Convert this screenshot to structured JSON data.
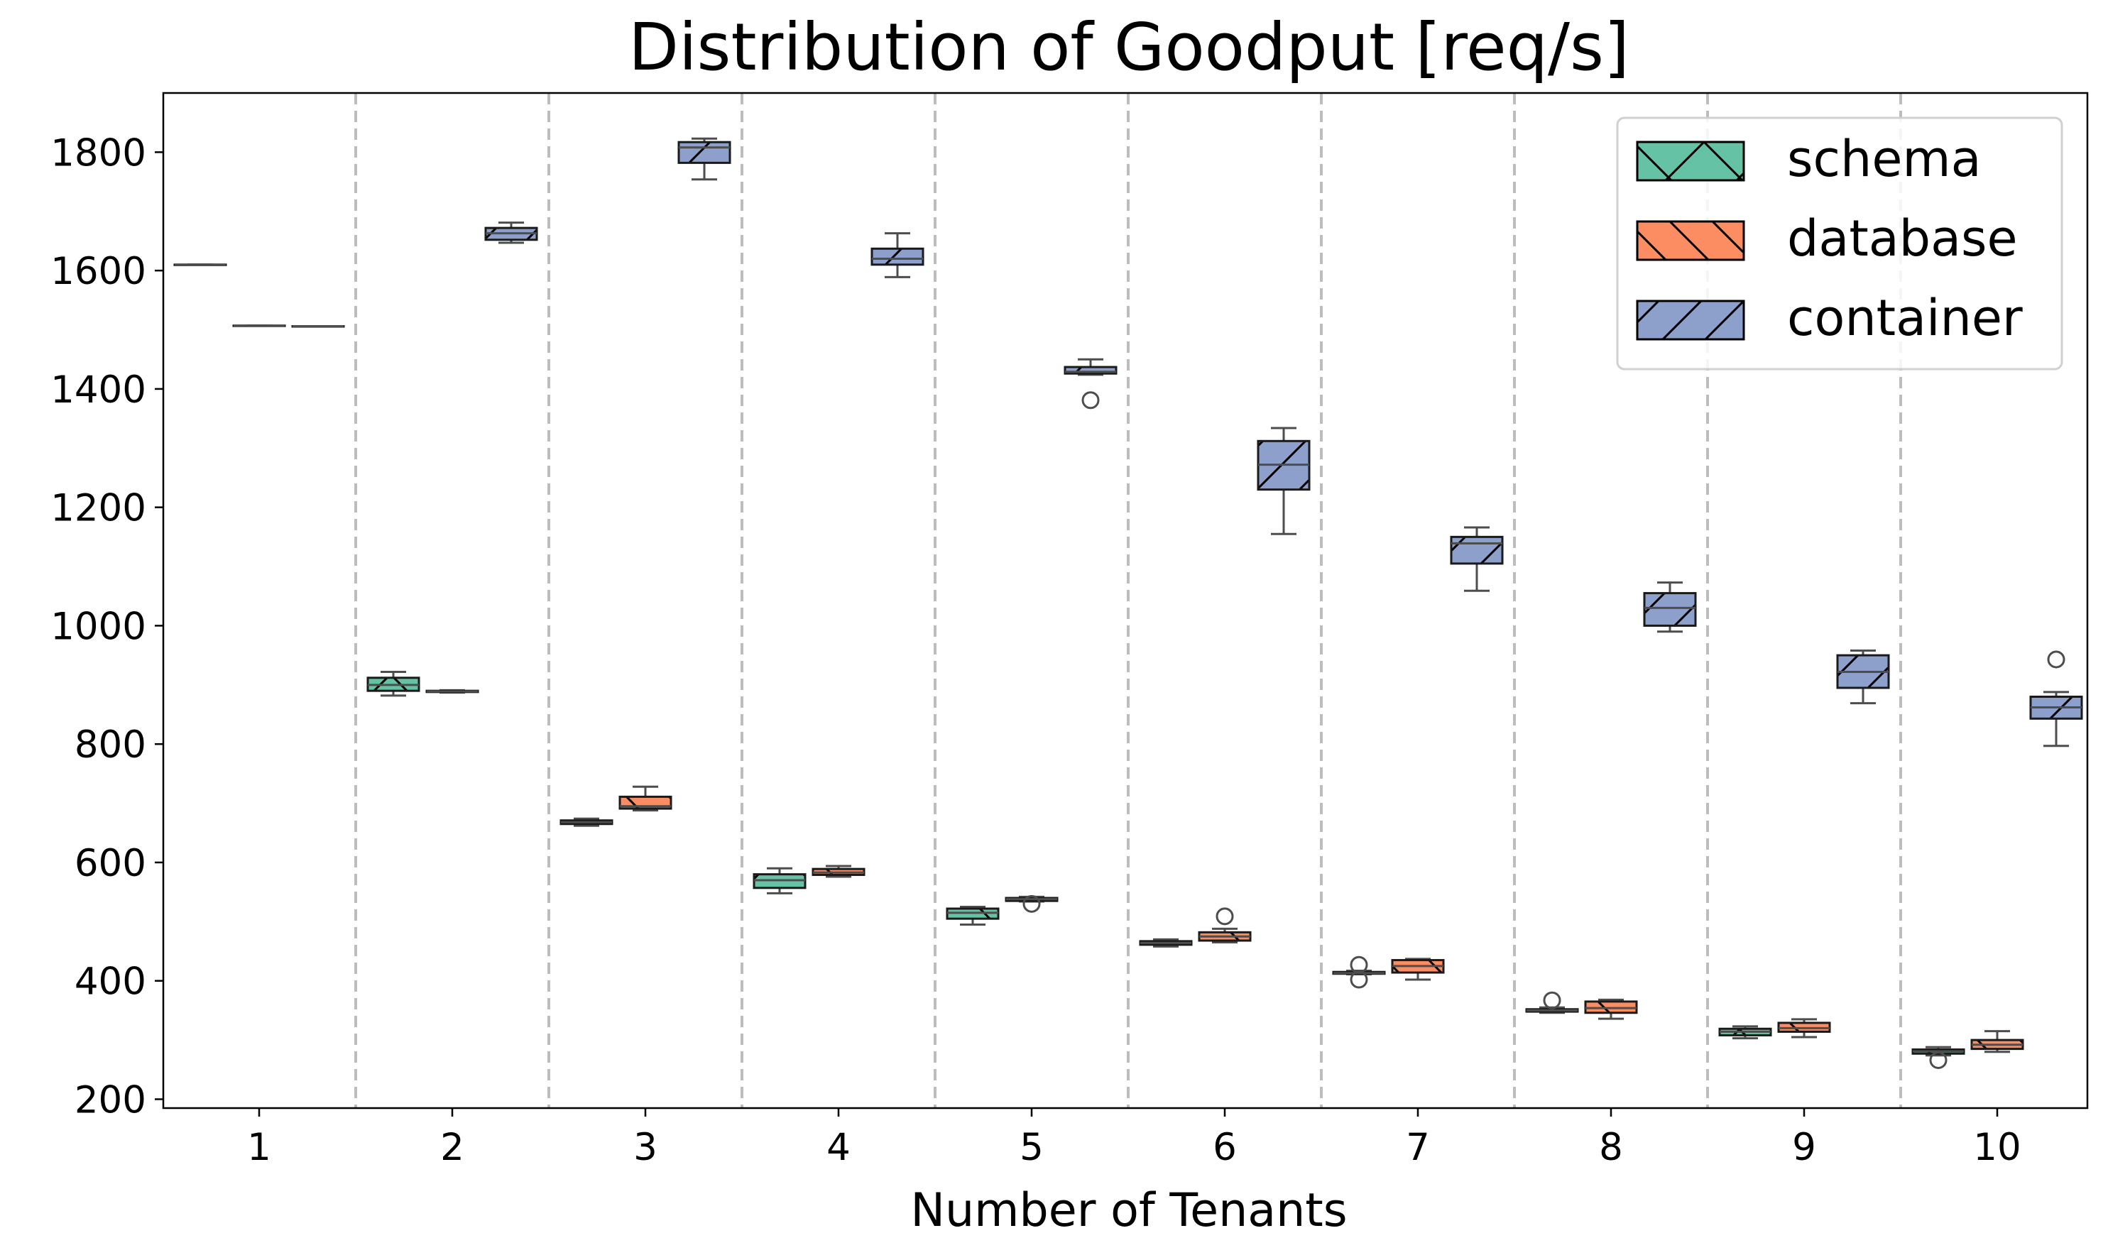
{
  "chart_data": {
    "type": "box",
    "title": "Distribution of Goodput [req/s]",
    "xlabel": "Number of Tenants",
    "ylabel": "",
    "categories": [
      "1",
      "2",
      "3",
      "4",
      "5",
      "6",
      "7",
      "8",
      "9",
      "10"
    ],
    "y_ticks": [
      200,
      400,
      600,
      800,
      1000,
      1200,
      1400,
      1600,
      1800
    ],
    "ylim": [
      185,
      1900
    ],
    "grid": false,
    "category_separators": "dashed vertical lines between categories",
    "legend": {
      "position": "top-right"
    },
    "series": [
      {
        "name": "schema",
        "color": "#66c2a5",
        "hatch": "x",
        "boxes": [
          {
            "min": 1610,
            "q1": 1610,
            "median": 1610,
            "q3": 1610,
            "max": 1610,
            "outliers": []
          },
          {
            "min": 882,
            "q1": 890,
            "median": 900,
            "q3": 912,
            "max": 922,
            "outliers": []
          },
          {
            "min": 662,
            "q1": 665,
            "median": 668,
            "q3": 671,
            "max": 674,
            "outliers": []
          },
          {
            "min": 548,
            "q1": 557,
            "median": 570,
            "q3": 580,
            "max": 590,
            "outliers": []
          },
          {
            "min": 495,
            "q1": 505,
            "median": 515,
            "q3": 522,
            "max": 525,
            "outliers": []
          },
          {
            "min": 458,
            "q1": 461,
            "median": 464,
            "q3": 467,
            "max": 470,
            "outliers": []
          },
          {
            "min": 411,
            "q1": 412,
            "median": 413,
            "q3": 415,
            "max": 417,
            "outliers": [
              402,
              427
            ]
          },
          {
            "min": 346,
            "q1": 348,
            "median": 350,
            "q3": 352,
            "max": 355,
            "outliers": [
              367
            ]
          },
          {
            "min": 303,
            "q1": 308,
            "median": 314,
            "q3": 319,
            "max": 323,
            "outliers": []
          },
          {
            "min": 274,
            "q1": 277,
            "median": 281,
            "q3": 284,
            "max": 288,
            "outliers": [
              266
            ]
          }
        ]
      },
      {
        "name": "database",
        "color": "#fc8d62",
        "hatch": "\\",
        "boxes": [
          {
            "min": 1507,
            "q1": 1507,
            "median": 1507,
            "q3": 1507,
            "max": 1507,
            "outliers": []
          },
          {
            "min": 887,
            "q1": 888,
            "median": 889,
            "q3": 890,
            "max": 891,
            "outliers": []
          },
          {
            "min": 688,
            "q1": 691,
            "median": 695,
            "q3": 711,
            "max": 728,
            "outliers": []
          },
          {
            "min": 576,
            "q1": 579,
            "median": 583,
            "q3": 589,
            "max": 594,
            "outliers": []
          },
          {
            "min": 534,
            "q1": 535,
            "median": 538,
            "q3": 540,
            "max": 542,
            "outliers": [
              530
            ]
          },
          {
            "min": 465,
            "q1": 468,
            "median": 475,
            "q3": 482,
            "max": 488,
            "outliers": [
              509
            ]
          },
          {
            "min": 402,
            "q1": 414,
            "median": 425,
            "q3": 435,
            "max": 437,
            "outliers": []
          },
          {
            "min": 336,
            "q1": 346,
            "median": 354,
            "q3": 365,
            "max": 368,
            "outliers": []
          },
          {
            "min": 305,
            "q1": 314,
            "median": 320,
            "q3": 329,
            "max": 335,
            "outliers": []
          },
          {
            "min": 280,
            "q1": 285,
            "median": 292,
            "q3": 300,
            "max": 315,
            "outliers": []
          }
        ]
      },
      {
        "name": "container",
        "color": "#8da0cb",
        "hatch": "/",
        "boxes": [
          {
            "min": 1506,
            "q1": 1506,
            "median": 1506,
            "q3": 1506,
            "max": 1506,
            "outliers": []
          },
          {
            "min": 1647,
            "q1": 1652,
            "median": 1663,
            "q3": 1672,
            "max": 1681,
            "outliers": []
          },
          {
            "min": 1754,
            "q1": 1782,
            "median": 1808,
            "q3": 1817,
            "max": 1823,
            "outliers": []
          },
          {
            "min": 1589,
            "q1": 1610,
            "median": 1620,
            "q3": 1637,
            "max": 1663,
            "outliers": []
          },
          {
            "min": 1424,
            "q1": 1426,
            "median": 1429,
            "q3": 1437,
            "max": 1450,
            "outliers": [
              1381
            ]
          },
          {
            "min": 1155,
            "q1": 1230,
            "median": 1272,
            "q3": 1312,
            "max": 1334,
            "outliers": []
          },
          {
            "min": 1059,
            "q1": 1105,
            "median": 1139,
            "q3": 1150,
            "max": 1166,
            "outliers": []
          },
          {
            "min": 990,
            "q1": 1000,
            "median": 1030,
            "q3": 1055,
            "max": 1073,
            "outliers": []
          },
          {
            "min": 869,
            "q1": 895,
            "median": 922,
            "q3": 950,
            "max": 958,
            "outliers": []
          },
          {
            "min": 797,
            "q1": 843,
            "median": 862,
            "q3": 880,
            "max": 888,
            "outliers": [
              943
            ]
          }
        ]
      }
    ]
  }
}
